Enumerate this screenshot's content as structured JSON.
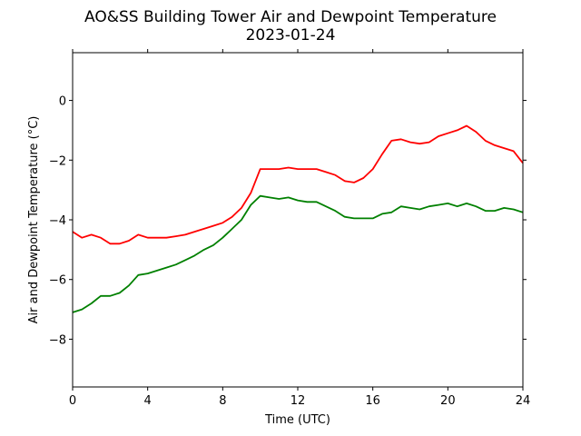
{
  "chart_data": {
    "type": "line",
    "title": "AO&SS Building Tower Air and Dewpoint Temperature",
    "subtitle": "2023-01-24",
    "xlabel": "Time (UTC)",
    "ylabel": "Air and Dewpoint Temperature (°C)",
    "xlim": [
      0,
      24
    ],
    "ylim": [
      -9.6,
      1.6
    ],
    "x_ticks": [
      0,
      4,
      8,
      12,
      16,
      20,
      24
    ],
    "y_ticks": [
      -8,
      -6,
      -4,
      -2,
      0
    ],
    "grid": false,
    "legend": "none",
    "series": [
      {
        "color": "#ff0000",
        "x": [
          0,
          0.5,
          1,
          1.5,
          2,
          2.5,
          3,
          3.5,
          4,
          4.5,
          5,
          5.5,
          6,
          6.5,
          7,
          7.5,
          8,
          8.5,
          9,
          9.5,
          10,
          10.5,
          11,
          11.5,
          12,
          12.5,
          13,
          13.5,
          14,
          14.5,
          15,
          15.5,
          16,
          16.5,
          17,
          17.5,
          18,
          18.5,
          19,
          19.5,
          20,
          20.5,
          21,
          21.5,
          22,
          22.5,
          23,
          23.5,
          24
        ],
        "y": [
          -4.4,
          -4.6,
          -4.5,
          -4.6,
          -4.8,
          -4.8,
          -4.7,
          -4.5,
          -4.6,
          -4.6,
          -4.6,
          -4.55,
          -4.5,
          -4.4,
          -4.3,
          -4.2,
          -4.1,
          -3.9,
          -3.6,
          -3.1,
          -2.3,
          -2.3,
          -2.3,
          -2.25,
          -2.3,
          -2.3,
          -2.3,
          -2.4,
          -2.5,
          -2.7,
          -2.75,
          -2.6,
          -2.3,
          -1.8,
          -1.35,
          -1.3,
          -1.4,
          -1.45,
          -1.4,
          -1.2,
          -1.1,
          -1.0,
          -0.85,
          -1.05,
          -1.35,
          -1.5,
          -1.6,
          -1.7,
          -2.1
        ]
      },
      {
        "color": "#008000",
        "x": [
          0,
          0.5,
          1,
          1.5,
          2,
          2.5,
          3,
          3.5,
          4,
          4.5,
          5,
          5.5,
          6,
          6.5,
          7,
          7.5,
          8,
          8.5,
          9,
          9.5,
          10,
          10.5,
          11,
          11.5,
          12,
          12.5,
          13,
          13.5,
          14,
          14.5,
          15,
          15.5,
          16,
          16.5,
          17,
          17.5,
          18,
          18.5,
          19,
          19.5,
          20,
          20.5,
          21,
          21.5,
          22,
          22.5,
          23,
          23.5,
          24
        ],
        "y": [
          -7.1,
          -7.0,
          -6.8,
          -6.55,
          -6.55,
          -6.45,
          -6.2,
          -5.85,
          -5.8,
          -5.7,
          -5.6,
          -5.5,
          -5.35,
          -5.2,
          -5.0,
          -4.85,
          -4.6,
          -4.3,
          -4.0,
          -3.5,
          -3.2,
          -3.25,
          -3.3,
          -3.25,
          -3.35,
          -3.4,
          -3.4,
          -3.55,
          -3.7,
          -3.9,
          -3.95,
          -3.95,
          -3.95,
          -3.8,
          -3.75,
          -3.55,
          -3.6,
          -3.65,
          -3.55,
          -3.5,
          -3.45,
          -3.55,
          -3.45,
          -3.55,
          -3.7,
          -3.7,
          -3.6,
          -3.65,
          -3.75
        ]
      }
    ]
  }
}
